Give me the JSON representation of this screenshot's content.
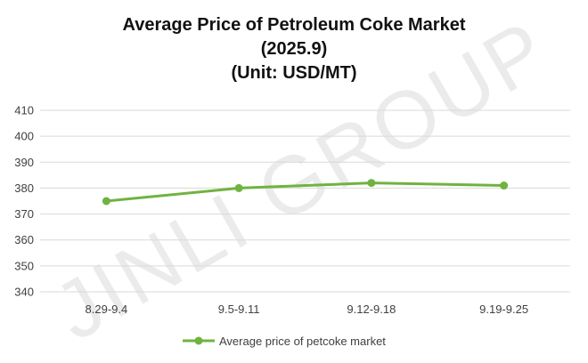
{
  "watermark": "JINLI GROUP",
  "colors": {
    "series": "#70B340",
    "grid": "#D9D9D9",
    "text": "#404040",
    "title": "#111111"
  },
  "chart_data": {
    "type": "line",
    "title": "Average Price of Petroleum Coke Market",
    "subtitle": "(2025.9)",
    "unit": "(Unit: USD/MT)",
    "categories": [
      "8.29-9.4",
      "9.5-9.11",
      "9.12-9.18",
      "9.19-9.25"
    ],
    "series": [
      {
        "name": "Average price of petcoke market",
        "values": [
          375,
          380,
          382,
          381
        ],
        "color": "#70B340",
        "marker": "circle"
      }
    ],
    "yticks": [
      340,
      350,
      360,
      370,
      380,
      390,
      400,
      410
    ],
    "ylim": [
      340,
      410
    ],
    "grid": true,
    "legend": "bottom"
  }
}
